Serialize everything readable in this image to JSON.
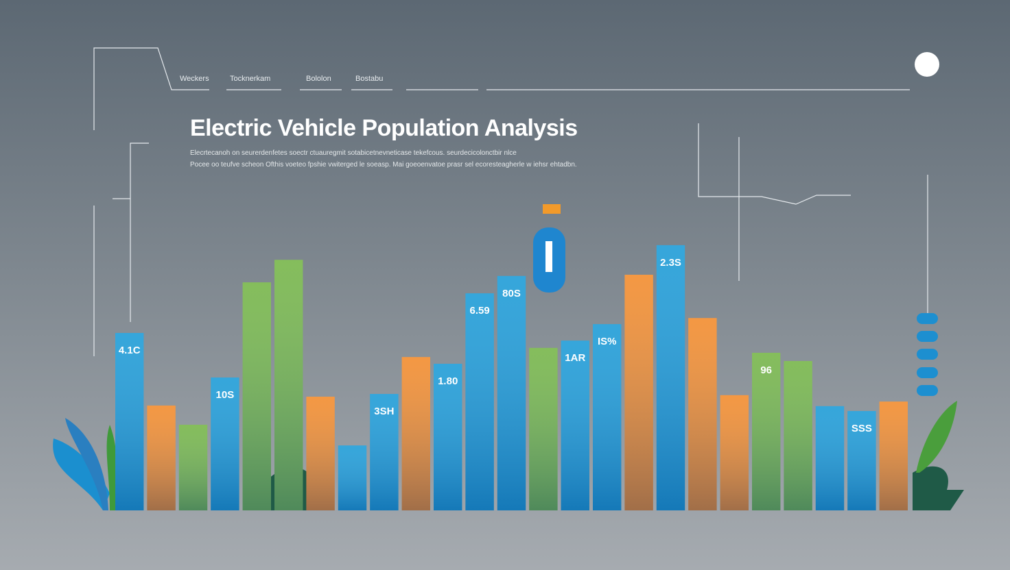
{
  "nav": [
    "Weckers",
    "Tocknerkam",
    "Bololon",
    "Bostabu"
  ],
  "chart_data": {
    "type": "bar",
    "title": "Electric Vehicle Population Analysis",
    "subtitle": [
      "Elecrtecanoh on seurerdenfetes soectr ctuauregmit sotabicetnevneticase tekefcous. seurdecicolonctbir nlce",
      "Pocee oo teufve scheon Ofthis voeteo fpshie vwiterged le soeasp. Mai goeoenvatoe prasr sel ecoresteagherle w iehsr ehtadbn."
    ],
    "categories": [
      null,
      null,
      null,
      null,
      null,
      null,
      null,
      null,
      null,
      null,
      null,
      null,
      null,
      null,
      null,
      null,
      null,
      null,
      null,
      null,
      null,
      null,
      null,
      null,
      null
    ],
    "values": [
      58.2,
      34.4,
      28.1,
      43.6,
      74.8,
      82.2,
      37.3,
      21.3,
      38.2,
      50.3,
      48.1,
      71.2,
      76.9,
      53.3,
      55.7,
      61.1,
      77.3,
      87.0,
      63.1,
      37.8,
      51.7,
      49.0,
      34.2,
      32.6,
      35.7
    ],
    "colors": [
      "#1a9ad6",
      "#f28a2a",
      "#74b446",
      "#1a9ad6",
      "#74b446",
      "#74b446",
      "#f28a2a",
      "#1a9ad6",
      "#1a9ad6",
      "#f28a2a",
      "#1a9ad6",
      "#1a9ad6",
      "#1a9ad6",
      "#74b446",
      "#1a9ad6",
      "#1a9ad6",
      "#f28a2a",
      "#1a9ad6",
      "#f28a2a",
      "#f28a2a",
      "#74b446",
      "#74b446",
      "#1a9ad6",
      "#1a9ad6",
      "#f28a2a"
    ],
    "bar_labels": [
      "4.1C",
      null,
      null,
      "10S",
      null,
      null,
      null,
      null,
      "3SH",
      null,
      "1.80",
      "6.59",
      "80S",
      null,
      "1AR",
      "IS%",
      null,
      "2.3S",
      null,
      null,
      "96",
      null,
      null,
      "SSS",
      null
    ],
    "ylim": [
      0,
      100
    ]
  }
}
